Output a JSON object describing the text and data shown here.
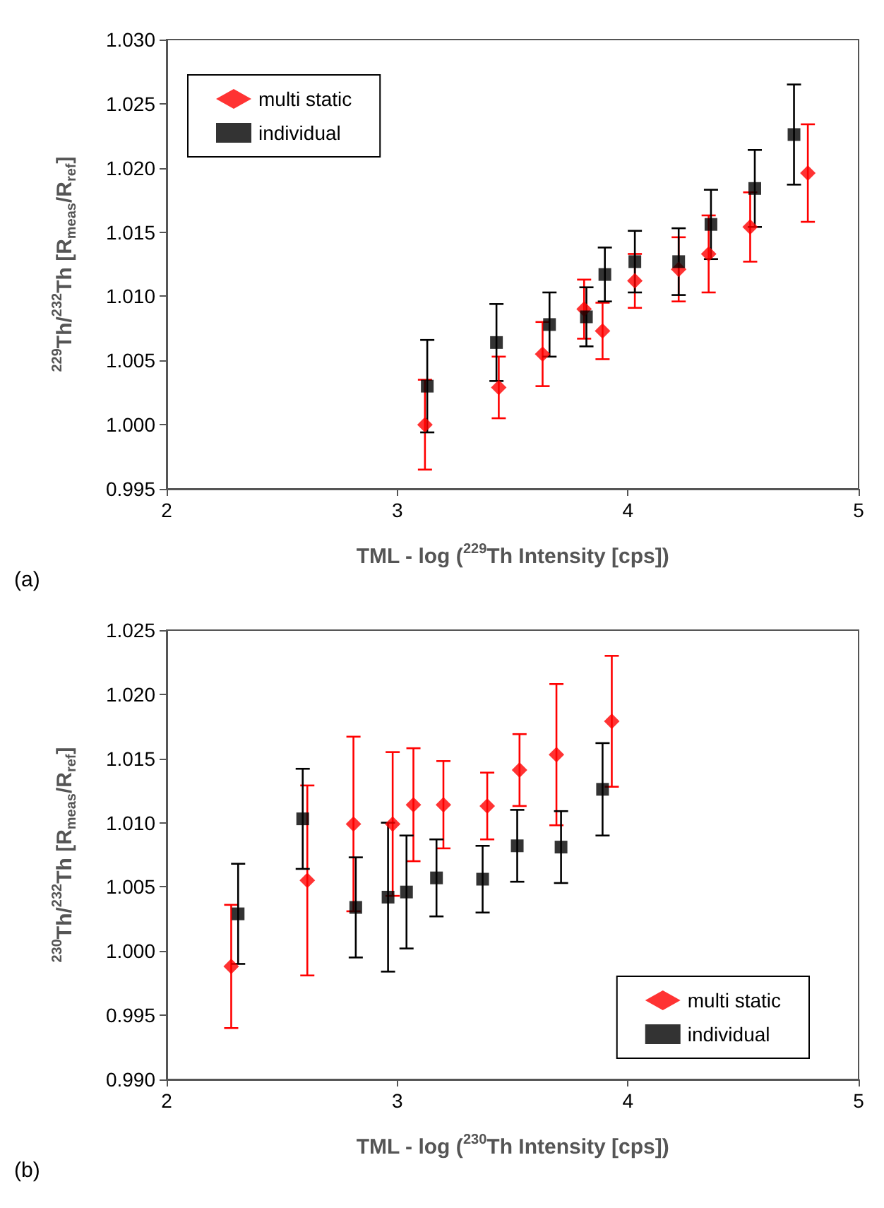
{
  "chart_data": [
    {
      "type": "scatter",
      "xlabel": "TML - log ($^{229}$Th Intensity [cps])",
      "ylabel": "$^{229}$Th/$^{232}$Th [R$_{meas}$/R$_{ref}$]",
      "annotations": [
        "(a)"
      ],
      "xlim": [
        2,
        5
      ],
      "xticks": [
        2,
        3,
        4,
        5
      ],
      "ylim": [
        0.995,
        1.03
      ],
      "yticks": [
        {
          "value": 0.995,
          "label": "0.995"
        },
        {
          "value": 1.0,
          "label": "1.000"
        },
        {
          "value": 1.005,
          "label": "1.005"
        },
        {
          "value": 1.01,
          "label": "1.010"
        },
        {
          "value": 1.015,
          "label": "1.015"
        },
        {
          "value": 1.02,
          "label": "1.020"
        },
        {
          "value": 1.025,
          "label": "1.025"
        },
        {
          "value": 1.03,
          "label": "1.030"
        }
      ],
      "legend": "top left",
      "series": [
        {
          "name": "multi static",
          "color": "#ff0000",
          "marker": "diamond",
          "x": [
            3.12,
            3.44,
            3.63,
            3.81,
            3.89,
            4.03,
            4.22,
            4.35,
            4.53,
            4.78
          ],
          "values": [
            1.0,
            1.0029,
            1.0055,
            1.009,
            1.0073,
            1.0112,
            1.0121,
            1.0133,
            1.0154,
            1.0196
          ],
          "errors": [
            0.0035,
            0.0024,
            0.0025,
            0.0023,
            0.0022,
            0.0021,
            0.0025,
            0.003,
            0.0027,
            0.0038
          ]
        },
        {
          "name": "individual",
          "color": "#000000",
          "marker": "square",
          "x": [
            3.13,
            3.43,
            3.66,
            3.82,
            3.9,
            4.03,
            4.22,
            4.36,
            4.55,
            4.72
          ],
          "values": [
            1.003,
            1.0064,
            1.0078,
            1.0084,
            1.0117,
            1.0127,
            1.0127,
            1.0156,
            1.0184,
            1.0226
          ],
          "errors": [
            0.0036,
            0.003,
            0.0025,
            0.0023,
            0.0021,
            0.0024,
            0.0026,
            0.0027,
            0.003,
            0.0039
          ]
        }
      ]
    },
    {
      "type": "scatter",
      "xlabel": "TML - log ($^{230}$Th Intensity [cps])",
      "ylabel": "$^{230}$Th/$^{232}$Th [R$_{meas}$/R$_{ref}$]",
      "annotations": [
        "(b)"
      ],
      "xlim": [
        2,
        5
      ],
      "xticks": [
        2,
        3,
        4,
        5
      ],
      "ylim": [
        0.99,
        1.025
      ],
      "yticks": [
        {
          "value": 0.99,
          "label": "0.990"
        },
        {
          "value": 0.995,
          "label": "0.995"
        },
        {
          "value": 1.0,
          "label": "1.000"
        },
        {
          "value": 1.005,
          "label": "1.005"
        },
        {
          "value": 1.01,
          "label": "1.010"
        },
        {
          "value": 1.015,
          "label": "1.015"
        },
        {
          "value": 1.02,
          "label": "1.020"
        },
        {
          "value": 1.025,
          "label": "1.025"
        }
      ],
      "legend": "bottom right",
      "series": [
        {
          "name": "multi static",
          "color": "#ff0000",
          "marker": "diamond",
          "x": [
            2.28,
            2.61,
            2.81,
            2.98,
            3.07,
            3.2,
            3.39,
            3.53,
            3.69,
            3.93
          ],
          "values": [
            0.9988,
            1.0055,
            1.0099,
            1.0099,
            1.0114,
            1.0114,
            1.0113,
            1.0141,
            1.0153,
            1.0179
          ],
          "errors": [
            0.0048,
            0.0074,
            0.0068,
            0.0056,
            0.0044,
            0.0034,
            0.0026,
            0.0028,
            0.0055,
            0.0051
          ]
        },
        {
          "name": "individual",
          "color": "#000000",
          "marker": "square",
          "x": [
            2.31,
            2.59,
            2.82,
            2.96,
            3.04,
            3.17,
            3.37,
            3.52,
            3.71,
            3.89
          ],
          "values": [
            1.0029,
            1.0103,
            1.0034,
            1.0042,
            1.0046,
            1.0057,
            1.0056,
            1.0082,
            1.0081,
            1.0126
          ],
          "errors": [
            0.0039,
            0.0039,
            0.0039,
            0.0058,
            0.0044,
            0.003,
            0.0026,
            0.0028,
            0.0028,
            0.0036
          ]
        }
      ]
    }
  ]
}
